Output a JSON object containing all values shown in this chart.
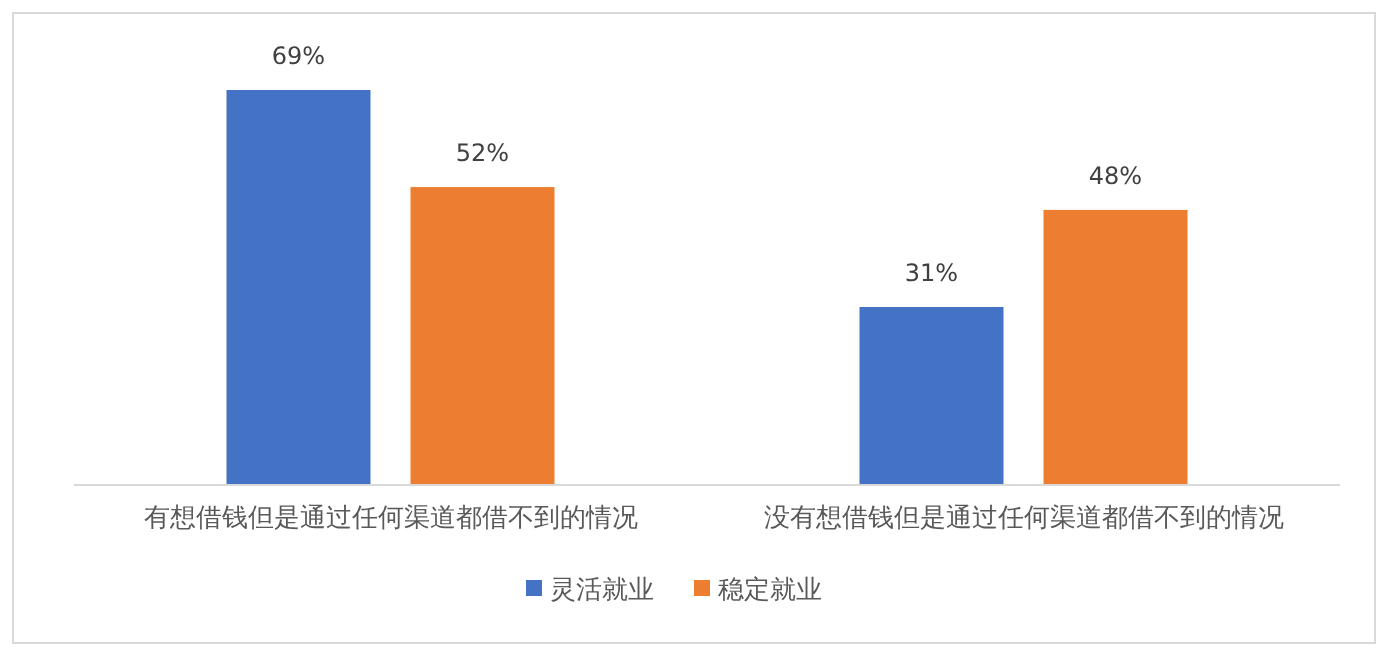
{
  "chart_data": {
    "type": "bar",
    "categories": [
      "有想借钱但是通过任何渠道都借不到的情况",
      "没有想借钱但是通过任何渠道都借不到的情况"
    ],
    "series": [
      {
        "name": "灵活就业",
        "color": "#4472c4",
        "values": [
          69,
          31
        ],
        "value_labels": [
          "69%",
          "31%"
        ]
      },
      {
        "name": "稳定就业",
        "color": "#ed7d31",
        "values": [
          52,
          48
        ],
        "value_labels": [
          "52%",
          "48%"
        ]
      }
    ],
    "legend": "bottom"
  }
}
